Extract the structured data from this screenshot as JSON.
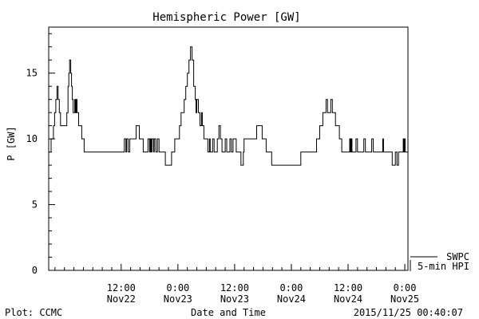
{
  "chart_data": {
    "type": "line",
    "title": "Hemispheric Power [GW]",
    "xlabel": "Date and Time",
    "ylabel": "P [GW]",
    "ylim": [
      0,
      18.5
    ],
    "xlim": [
      "2015-11-21T20:40",
      "2015-11-25T00:40"
    ],
    "grid": false,
    "y_ticks": [
      0,
      5,
      10,
      15
    ],
    "y_minor_step": 1,
    "x_major_ticks": [
      {
        "time": "2015-11-22T12:00",
        "label_top": "12:00",
        "label_bottom": "Nov22"
      },
      {
        "time": "2015-11-23T00:00",
        "label_top": "0:00",
        "label_bottom": "Nov23"
      },
      {
        "time": "2015-11-23T12:00",
        "label_top": "12:00",
        "label_bottom": "Nov23"
      },
      {
        "time": "2015-11-24T00:00",
        "label_top": "0:00",
        "label_bottom": "Nov24"
      },
      {
        "time": "2015-11-24T12:00",
        "label_top": "12:00",
        "label_bottom": "Nov24"
      },
      {
        "time": "2015-11-25T00:00",
        "label_top": "0:00",
        "label_bottom": "Nov25"
      }
    ],
    "x_minor_step_hours": 2,
    "legend": {
      "placement": "bottom-right outside plot",
      "entries": [
        {
          "label": "SWPC"
        },
        {
          "label": "5-min HPI"
        }
      ]
    },
    "series": [
      {
        "name": "SWPC",
        "color": "#000000",
        "step": true,
        "points": [
          [
            "2015-11-21T20:40",
            9
          ],
          [
            "2015-11-21T21:10",
            10
          ],
          [
            "2015-11-21T21:40",
            11
          ],
          [
            "2015-11-21T21:55",
            12
          ],
          [
            "2015-11-21T22:10",
            13
          ],
          [
            "2015-11-21T22:25",
            14
          ],
          [
            "2015-11-21T22:40",
            13
          ],
          [
            "2015-11-21T22:55",
            12
          ],
          [
            "2015-11-21T23:10",
            11
          ],
          [
            "2015-11-22T00:30",
            12
          ],
          [
            "2015-11-22T00:45",
            14
          ],
          [
            "2015-11-22T00:55",
            15
          ],
          [
            "2015-11-22T01:05",
            16
          ],
          [
            "2015-11-22T01:20",
            15
          ],
          [
            "2015-11-22T01:30",
            14
          ],
          [
            "2015-11-22T01:40",
            13
          ],
          [
            "2015-11-22T01:50",
            12
          ],
          [
            "2015-11-22T02:10",
            13
          ],
          [
            "2015-11-22T02:20",
            12
          ],
          [
            "2015-11-22T02:30",
            13
          ],
          [
            "2015-11-22T02:40",
            12
          ],
          [
            "2015-11-22T03:00",
            11
          ],
          [
            "2015-11-22T03:40",
            10
          ],
          [
            "2015-11-22T04:10",
            9
          ],
          [
            "2015-11-22T12:40",
            10
          ],
          [
            "2015-11-22T13:00",
            9
          ],
          [
            "2015-11-22T13:10",
            10
          ],
          [
            "2015-11-22T13:30",
            9
          ],
          [
            "2015-11-22T13:50",
            10
          ],
          [
            "2015-11-22T15:10",
            11
          ],
          [
            "2015-11-22T15:50",
            10
          ],
          [
            "2015-11-22T16:40",
            9
          ],
          [
            "2015-11-22T17:40",
            10
          ],
          [
            "2015-11-22T18:00",
            9
          ],
          [
            "2015-11-22T18:10",
            10
          ],
          [
            "2015-11-22T18:20",
            9
          ],
          [
            "2015-11-22T18:30",
            10
          ],
          [
            "2015-11-22T18:50",
            9
          ],
          [
            "2015-11-22T19:00",
            10
          ],
          [
            "2015-11-22T19:20",
            9
          ],
          [
            "2015-11-22T19:40",
            10
          ],
          [
            "2015-11-22T20:00",
            9
          ],
          [
            "2015-11-22T21:20",
            8
          ],
          [
            "2015-11-22T22:40",
            9
          ],
          [
            "2015-11-22T23:20",
            10
          ],
          [
            "2015-11-23T00:20",
            11
          ],
          [
            "2015-11-23T00:40",
            12
          ],
          [
            "2015-11-23T01:20",
            13
          ],
          [
            "2015-11-23T01:40",
            14
          ],
          [
            "2015-11-23T02:00",
            15
          ],
          [
            "2015-11-23T02:20",
            16
          ],
          [
            "2015-11-23T02:40",
            17
          ],
          [
            "2015-11-23T03:00",
            16
          ],
          [
            "2015-11-23T03:20",
            14
          ],
          [
            "2015-11-23T03:40",
            13
          ],
          [
            "2015-11-23T03:50",
            12
          ],
          [
            "2015-11-23T04:00",
            13
          ],
          [
            "2015-11-23T04:20",
            12
          ],
          [
            "2015-11-23T04:40",
            11
          ],
          [
            "2015-11-23T05:00",
            12
          ],
          [
            "2015-11-23T05:10",
            11
          ],
          [
            "2015-11-23T05:30",
            10
          ],
          [
            "2015-11-23T06:20",
            9
          ],
          [
            "2015-11-23T06:40",
            10
          ],
          [
            "2015-11-23T06:50",
            9
          ],
          [
            "2015-11-23T07:20",
            10
          ],
          [
            "2015-11-23T07:40",
            9
          ],
          [
            "2015-11-23T08:20",
            10
          ],
          [
            "2015-11-23T08:40",
            11
          ],
          [
            "2015-11-23T09:00",
            10
          ],
          [
            "2015-11-23T09:20",
            9
          ],
          [
            "2015-11-23T10:00",
            10
          ],
          [
            "2015-11-23T10:20",
            9
          ],
          [
            "2015-11-23T11:00",
            10
          ],
          [
            "2015-11-23T11:20",
            9
          ],
          [
            "2015-11-23T11:40",
            10
          ],
          [
            "2015-11-23T12:20",
            9
          ],
          [
            "2015-11-23T13:20",
            8
          ],
          [
            "2015-11-23T13:50",
            9
          ],
          [
            "2015-11-23T14:00",
            10
          ],
          [
            "2015-11-23T16:40",
            11
          ],
          [
            "2015-11-23T17:50",
            10
          ],
          [
            "2015-11-23T18:40",
            9
          ],
          [
            "2015-11-23T19:50",
            8
          ],
          [
            "2015-11-24T02:00",
            9
          ],
          [
            "2015-11-24T05:20",
            10
          ],
          [
            "2015-11-24T06:00",
            11
          ],
          [
            "2015-11-24T06:40",
            12
          ],
          [
            "2015-11-24T07:20",
            13
          ],
          [
            "2015-11-24T07:40",
            12
          ],
          [
            "2015-11-24T08:20",
            13
          ],
          [
            "2015-11-24T08:40",
            12
          ],
          [
            "2015-11-24T09:20",
            11
          ],
          [
            "2015-11-24T10:10",
            10
          ],
          [
            "2015-11-24T10:40",
            9
          ],
          [
            "2015-11-24T12:20",
            10
          ],
          [
            "2015-11-24T12:30",
            9
          ],
          [
            "2015-11-24T12:40",
            10
          ],
          [
            "2015-11-24T12:50",
            9
          ],
          [
            "2015-11-24T13:40",
            10
          ],
          [
            "2015-11-24T14:00",
            9
          ],
          [
            "2015-11-24T15:20",
            10
          ],
          [
            "2015-11-24T15:40",
            9
          ],
          [
            "2015-11-24T17:00",
            10
          ],
          [
            "2015-11-24T17:20",
            9
          ],
          [
            "2015-11-24T19:20",
            10
          ],
          [
            "2015-11-24T19:30",
            9
          ],
          [
            "2015-11-24T21:20",
            8
          ],
          [
            "2015-11-24T22:00",
            9
          ],
          [
            "2015-11-24T22:20",
            8
          ],
          [
            "2015-11-24T22:40",
            9
          ],
          [
            "2015-11-24T23:40",
            10
          ],
          [
            "2015-11-24T23:50",
            9
          ],
          [
            "2015-11-25T00:00",
            10
          ],
          [
            "2015-11-25T00:05",
            9
          ],
          [
            "2015-11-25T00:40",
            9
          ]
        ]
      },
      {
        "name": "5-min HPI",
        "color": "#000000",
        "points": []
      }
    ]
  },
  "footer": {
    "left": "Plot: CCMC",
    "right": "2015/11/25 00:40:07"
  }
}
